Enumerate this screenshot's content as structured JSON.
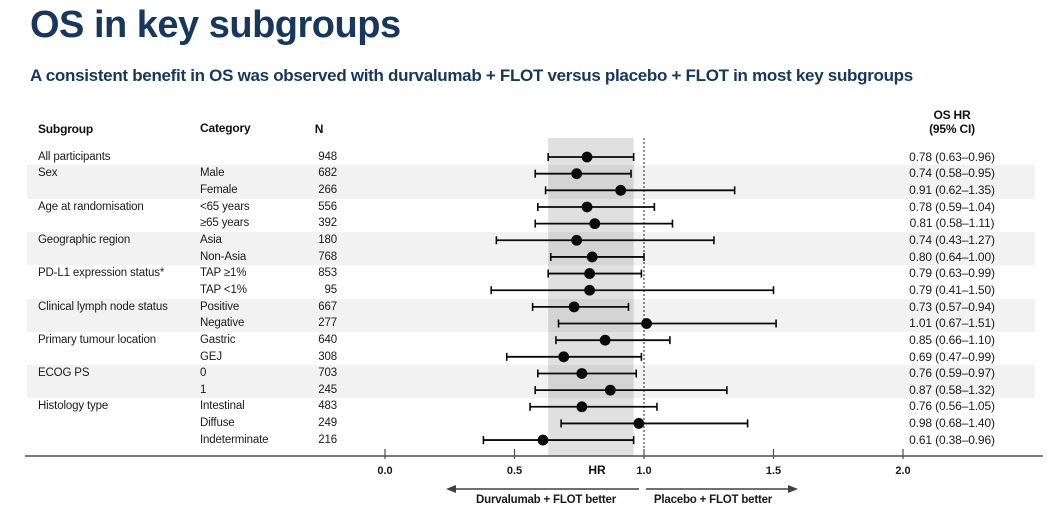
{
  "title": "OS in key subgroups",
  "subtitle": "A consistent benefit in OS was observed with durvalumab + FLOT versus placebo + FLOT in most key subgroups",
  "colors": {
    "accent_navy": "#17375D",
    "row_shade": "#F2F2F2",
    "ci_band": "rgba(0,0,0,0.12)",
    "axis": "#4d4d4d",
    "marker": "#0a0a0a"
  },
  "table": {
    "headers": {
      "subgroup": "Subgroup",
      "category": "Category",
      "n": "N",
      "hr_line1": "OS HR",
      "hr_line2": "(95% CI)"
    }
  },
  "chart_data": {
    "type": "forest",
    "title": "OS in key subgroups",
    "xlabel": "HR",
    "axis": {
      "ticks": [
        0.0,
        0.5,
        1.0,
        1.5,
        2.0
      ],
      "label": "HR",
      "range": [
        0.0,
        2.0
      ]
    },
    "reference_line": 1.0,
    "overall_ci_band": [
      0.63,
      0.96
    ],
    "arrows": {
      "left": "Durvalumab + FLOT better",
      "right": "Placebo + FLOT better"
    },
    "rows": [
      {
        "subgroup": "All participants",
        "category": "",
        "n": "948",
        "hr": 0.78,
        "lo": 0.63,
        "hi": 0.96,
        "hr_text": "0.78 (0.63–0.96)",
        "shaded": false
      },
      {
        "subgroup": "Sex",
        "category": "Male",
        "n": "682",
        "hr": 0.74,
        "lo": 0.58,
        "hi": 0.95,
        "hr_text": "0.74 (0.58–0.95)",
        "shaded": true
      },
      {
        "subgroup": "",
        "category": "Female",
        "n": "266",
        "hr": 0.91,
        "lo": 0.62,
        "hi": 1.35,
        "hr_text": "0.91 (0.62–1.35)",
        "shaded": true
      },
      {
        "subgroup": "Age at randomisation",
        "category": "<65 years",
        "n": "556",
        "hr": 0.78,
        "lo": 0.59,
        "hi": 1.04,
        "hr_text": "0.78 (0.59–1.04)",
        "shaded": false
      },
      {
        "subgroup": "",
        "category": "≥65 years",
        "n": "392",
        "hr": 0.81,
        "lo": 0.58,
        "hi": 1.11,
        "hr_text": "0.81 (0.58–1.11)",
        "shaded": false
      },
      {
        "subgroup": "Geographic region",
        "category": "Asia",
        "n": "180",
        "hr": 0.74,
        "lo": 0.43,
        "hi": 1.27,
        "hr_text": "0.74 (0.43–1.27)",
        "shaded": true
      },
      {
        "subgroup": "",
        "category": "Non-Asia",
        "n": "768",
        "hr": 0.8,
        "lo": 0.64,
        "hi": 1.0,
        "hr_text": "0.80 (0.64–1.00)",
        "shaded": true
      },
      {
        "subgroup": "PD-L1 expression status*",
        "category": "TAP ≥1%",
        "n": "853",
        "hr": 0.79,
        "lo": 0.63,
        "hi": 0.99,
        "hr_text": "0.79 (0.63–0.99)",
        "shaded": false
      },
      {
        "subgroup": "",
        "category": "TAP <1%",
        "n": "95",
        "hr": 0.79,
        "lo": 0.41,
        "hi": 1.5,
        "hr_text": "0.79 (0.41–1.50)",
        "shaded": false
      },
      {
        "subgroup": "Clinical lymph node status",
        "category": "Positive",
        "n": "667",
        "hr": 0.73,
        "lo": 0.57,
        "hi": 0.94,
        "hr_text": "0.73 (0.57–0.94)",
        "shaded": true
      },
      {
        "subgroup": "",
        "category": "Negative",
        "n": "277",
        "hr": 1.01,
        "lo": 0.67,
        "hi": 1.51,
        "hr_text": "1.01 (0.67–1.51)",
        "shaded": true
      },
      {
        "subgroup": "Primary tumour location",
        "category": "Gastric",
        "n": "640",
        "hr": 0.85,
        "lo": 0.66,
        "hi": 1.1,
        "hr_text": "0.85 (0.66–1.10)",
        "shaded": false
      },
      {
        "subgroup": "",
        "category": "GEJ",
        "n": "308",
        "hr": 0.69,
        "lo": 0.47,
        "hi": 0.99,
        "hr_text": "0.69 (0.47–0.99)",
        "shaded": false
      },
      {
        "subgroup": "ECOG PS",
        "category": "0",
        "n": "703",
        "hr": 0.76,
        "lo": 0.59,
        "hi": 0.97,
        "hr_text": "0.76 (0.59–0.97)",
        "shaded": true
      },
      {
        "subgroup": "",
        "category": "1",
        "n": "245",
        "hr": 0.87,
        "lo": 0.58,
        "hi": 1.32,
        "hr_text": "0.87 (0.58–1.32)",
        "shaded": true
      },
      {
        "subgroup": "Histology type",
        "category": "Intestinal",
        "n": "483",
        "hr": 0.76,
        "lo": 0.56,
        "hi": 1.05,
        "hr_text": "0.76 (0.56–1.05)",
        "shaded": false
      },
      {
        "subgroup": "",
        "category": "Diffuse",
        "n": "249",
        "hr": 0.98,
        "lo": 0.68,
        "hi": 1.4,
        "hr_text": "0.98 (0.68–1.40)",
        "shaded": false
      },
      {
        "subgroup": "",
        "category": "Indeterminate",
        "n": "216",
        "hr": 0.61,
        "lo": 0.38,
        "hi": 0.96,
        "hr_text": "0.61 (0.38–0.96)",
        "shaded": false
      }
    ]
  }
}
